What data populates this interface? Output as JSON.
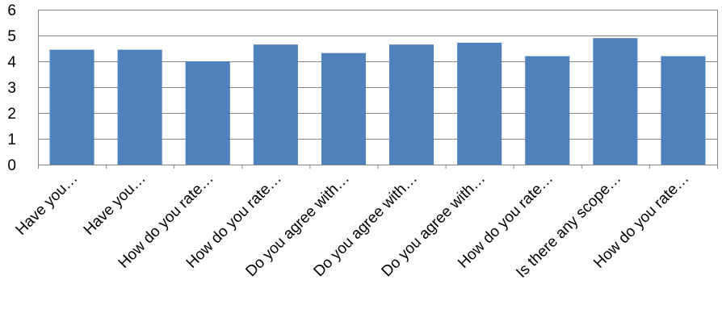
{
  "chart_data": {
    "type": "bar",
    "categories": [
      "Have you…",
      "Have you…",
      "How do you rate…",
      "How do you rate…",
      "Do you agree with…",
      "Do you agree with…",
      "Do you agree with…",
      "How do you rate…",
      "Is there any scope…",
      "How do you rate…"
    ],
    "values": [
      4.45,
      4.45,
      4.0,
      4.65,
      4.32,
      4.65,
      4.72,
      4.2,
      4.9,
      4.2
    ],
    "yticks": [
      "0",
      "1",
      "2",
      "3",
      "4",
      "5",
      "6"
    ],
    "ylim": [
      0,
      6
    ],
    "grid": true,
    "legend": "none",
    "title": "",
    "xlabel": "",
    "ylabel": ""
  },
  "colors": {
    "bar": "#4f81bd",
    "grid": "#868686",
    "axis": "#868686"
  }
}
